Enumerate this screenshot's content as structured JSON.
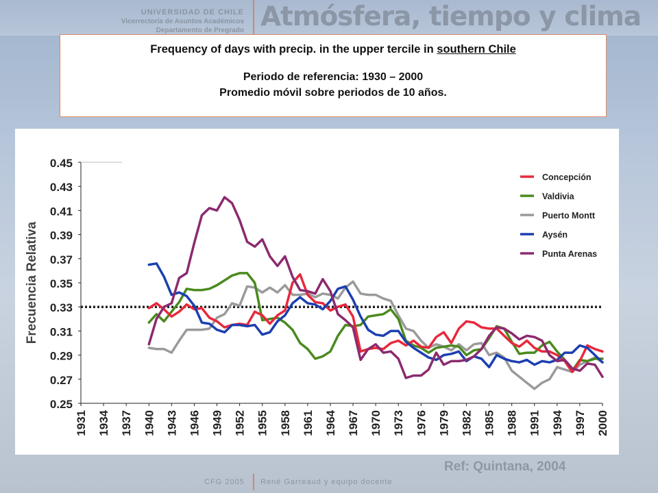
{
  "header": {
    "university": "UNIVERSIDAD DE CHILE",
    "vicerrectoria": "Vicerrectoría de Asuntos Académicos",
    "department": "Departamento de Pregrado",
    "course_title": "Atmósfera, tiempo y clima"
  },
  "title_box": {
    "title_prefix": "Frequency of days with precip. in the upper tercile in ",
    "title_region": "southern Chile",
    "line2": "Periodo de referencia: 1930 – 2000",
    "line3": "Promedio móvil sobre periodos de 10 años."
  },
  "reference": "Ref: Quintana, 2004",
  "footer": {
    "left": "CFG 2005",
    "right": "René Garreaud y equipo docente"
  },
  "chart_data": {
    "type": "line",
    "title": "",
    "xlabel": "",
    "ylabel": "Frecuencia Relativa",
    "xlim": [
      1931,
      2000
    ],
    "ylim": [
      0.25,
      0.45
    ],
    "x_ticks": [
      1931,
      1934,
      1937,
      1940,
      1943,
      1946,
      1949,
      1952,
      1955,
      1958,
      1961,
      1964,
      1967,
      1970,
      1973,
      1976,
      1979,
      1982,
      1985,
      1988,
      1991,
      1994,
      1997,
      2000
    ],
    "y_ticks": [
      "0.25",
      "0.27",
      "0.29",
      "0.31",
      "0.33",
      "0.35",
      "0.37",
      "0.39",
      "0.41",
      "0.43",
      "0.45"
    ],
    "grid": false,
    "legend_position": "top-right",
    "reference_line": {
      "y": 0.33,
      "style": "dotted"
    },
    "series": [
      {
        "name": "Concepción",
        "color": "#e8283c",
        "x": [
          1940,
          1941,
          1942,
          1943,
          1944,
          1945,
          1946,
          1947,
          1948,
          1949,
          1950,
          1951,
          1952,
          1953,
          1954,
          1955,
          1956,
          1957,
          1958,
          1959,
          1960,
          1961,
          1962,
          1963,
          1964,
          1965,
          1966,
          1967,
          1968,
          1969,
          1970,
          1971,
          1972,
          1973,
          1974,
          1975,
          1976,
          1977,
          1978,
          1979,
          1980,
          1981,
          1982,
          1983,
          1984,
          1985,
          1986,
          1987,
          1988,
          1989,
          1990,
          1991,
          1992,
          1993,
          1994,
          1995,
          1996,
          1997,
          1998,
          1999,
          2000
        ],
        "y": [
          0.329,
          0.333,
          0.328,
          0.322,
          0.326,
          0.332,
          0.328,
          0.329,
          0.321,
          0.318,
          0.313,
          0.315,
          0.316,
          0.315,
          0.326,
          0.323,
          0.316,
          0.323,
          0.327,
          0.35,
          0.357,
          0.34,
          0.334,
          0.333,
          0.327,
          0.33,
          0.332,
          0.322,
          0.293,
          0.295,
          0.296,
          0.295,
          0.3,
          0.302,
          0.298,
          0.302,
          0.297,
          0.296,
          0.305,
          0.309,
          0.3,
          0.312,
          0.318,
          0.317,
          0.313,
          0.312,
          0.312,
          0.306,
          0.3,
          0.297,
          0.302,
          0.296,
          0.293,
          0.293,
          0.29,
          0.285,
          0.276,
          0.285,
          0.298,
          0.295,
          0.293
        ]
      },
      {
        "name": "Valdivia",
        "color": "#4a8a1e",
        "x": [
          1940,
          1941,
          1942,
          1943,
          1944,
          1945,
          1946,
          1947,
          1948,
          1949,
          1950,
          1951,
          1952,
          1953,
          1954,
          1955,
          1956,
          1957,
          1958,
          1959,
          1960,
          1961,
          1962,
          1963,
          1964,
          1965,
          1966,
          1967,
          1968,
          1969,
          1970,
          1971,
          1972,
          1973,
          1974,
          1975,
          1976,
          1977,
          1978,
          1979,
          1980,
          1981,
          1982,
          1983,
          1984,
          1985,
          1986,
          1987,
          1988,
          1989,
          1990,
          1991,
          1992,
          1993,
          1994,
          1995,
          1996,
          1997,
          1998,
          1999,
          2000
        ],
        "y": [
          0.317,
          0.324,
          0.318,
          0.326,
          0.334,
          0.345,
          0.344,
          0.344,
          0.345,
          0.348,
          0.352,
          0.356,
          0.358,
          0.358,
          0.35,
          0.319,
          0.32,
          0.321,
          0.317,
          0.311,
          0.3,
          0.295,
          0.287,
          0.289,
          0.293,
          0.306,
          0.315,
          0.314,
          0.315,
          0.322,
          0.323,
          0.324,
          0.328,
          0.32,
          0.302,
          0.298,
          0.296,
          0.292,
          0.296,
          0.297,
          0.298,
          0.297,
          0.29,
          0.294,
          0.295,
          0.304,
          0.314,
          0.312,
          0.301,
          0.291,
          0.292,
          0.292,
          0.298,
          0.301,
          0.293,
          0.286,
          0.277,
          0.286,
          0.285,
          0.287,
          0.287
        ]
      },
      {
        "name": "Puerto Montt",
        "color": "#9a9a9a",
        "x": [
          1940,
          1941,
          1942,
          1943,
          1944,
          1945,
          1946,
          1947,
          1948,
          1949,
          1950,
          1951,
          1952,
          1953,
          1954,
          1955,
          1956,
          1957,
          1958,
          1959,
          1960,
          1961,
          1962,
          1963,
          1964,
          1965,
          1966,
          1967,
          1968,
          1969,
          1970,
          1971,
          1972,
          1973,
          1974,
          1975,
          1976,
          1977,
          1978,
          1979,
          1980,
          1981,
          1982,
          1983,
          1984,
          1985,
          1986,
          1987,
          1988,
          1989,
          1990,
          1991,
          1992,
          1993,
          1994,
          1995,
          1996,
          1997,
          1998,
          1999,
          2000
        ],
        "y": [
          0.296,
          0.295,
          0.295,
          0.292,
          0.302,
          0.311,
          0.311,
          0.311,
          0.312,
          0.321,
          0.324,
          0.333,
          0.331,
          0.347,
          0.346,
          0.342,
          0.346,
          0.342,
          0.348,
          0.34,
          0.34,
          0.341,
          0.338,
          0.341,
          0.34,
          0.337,
          0.346,
          0.351,
          0.341,
          0.34,
          0.34,
          0.337,
          0.335,
          0.323,
          0.312,
          0.31,
          0.302,
          0.296,
          0.299,
          0.297,
          0.294,
          0.299,
          0.294,
          0.299,
          0.3,
          0.29,
          0.292,
          0.288,
          0.277,
          0.272,
          0.267,
          0.262,
          0.267,
          0.27,
          0.28,
          0.278,
          0.276,
          0.282,
          0.285,
          0.288,
          0.284
        ]
      },
      {
        "name": "Aysén",
        "color": "#1c3fb0",
        "x": [
          1940,
          1941,
          1942,
          1943,
          1944,
          1945,
          1946,
          1947,
          1948,
          1949,
          1950,
          1951,
          1952,
          1953,
          1954,
          1955,
          1956,
          1957,
          1958,
          1959,
          1960,
          1961,
          1962,
          1963,
          1964,
          1965,
          1966,
          1967,
          1968,
          1969,
          1970,
          1971,
          1972,
          1973,
          1974,
          1975,
          1976,
          1977,
          1978,
          1979,
          1980,
          1981,
          1982,
          1983,
          1984,
          1985,
          1986,
          1987,
          1988,
          1989,
          1990,
          1991,
          1992,
          1993,
          1994,
          1995,
          1996,
          1997,
          1998,
          1999,
          2000
        ],
        "y": [
          0.365,
          0.366,
          0.355,
          0.34,
          0.342,
          0.339,
          0.331,
          0.317,
          0.316,
          0.311,
          0.309,
          0.315,
          0.315,
          0.314,
          0.315,
          0.307,
          0.309,
          0.318,
          0.323,
          0.333,
          0.338,
          0.333,
          0.332,
          0.328,
          0.335,
          0.345,
          0.347,
          0.336,
          0.322,
          0.311,
          0.307,
          0.306,
          0.31,
          0.31,
          0.301,
          0.296,
          0.292,
          0.288,
          0.286,
          0.29,
          0.291,
          0.293,
          0.285,
          0.289,
          0.287,
          0.28,
          0.29,
          0.287,
          0.285,
          0.284,
          0.286,
          0.282,
          0.285,
          0.284,
          0.286,
          0.292,
          0.292,
          0.298,
          0.296,
          0.29,
          0.284
        ]
      },
      {
        "name": "Punta Arenas",
        "color": "#8b2a6e",
        "x": [
          1940,
          1941,
          1942,
          1943,
          1944,
          1945,
          1946,
          1947,
          1948,
          1949,
          1950,
          1951,
          1952,
          1953,
          1954,
          1955,
          1956,
          1957,
          1958,
          1959,
          1960,
          1961,
          1962,
          1963,
          1964,
          1965,
          1966,
          1967,
          1968,
          1969,
          1970,
          1971,
          1972,
          1973,
          1974,
          1975,
          1976,
          1977,
          1978,
          1979,
          1980,
          1981,
          1982,
          1983,
          1984,
          1985,
          1986,
          1987,
          1988,
          1989,
          1990,
          1991,
          1992,
          1993,
          1994,
          1995,
          1996,
          1997,
          1998,
          1999,
          2000
        ],
        "y": [
          0.299,
          0.32,
          0.33,
          0.333,
          0.354,
          0.358,
          0.383,
          0.406,
          0.412,
          0.41,
          0.421,
          0.416,
          0.402,
          0.384,
          0.38,
          0.386,
          0.372,
          0.364,
          0.372,
          0.355,
          0.344,
          0.343,
          0.341,
          0.353,
          0.343,
          0.324,
          0.319,
          0.313,
          0.286,
          0.295,
          0.299,
          0.292,
          0.293,
          0.287,
          0.271,
          0.273,
          0.273,
          0.278,
          0.292,
          0.282,
          0.285,
          0.285,
          0.286,
          0.289,
          0.295,
          0.306,
          0.313,
          0.312,
          0.308,
          0.303,
          0.306,
          0.305,
          0.302,
          0.29,
          0.285,
          0.286,
          0.279,
          0.277,
          0.283,
          0.282,
          0.272
        ]
      }
    ]
  }
}
